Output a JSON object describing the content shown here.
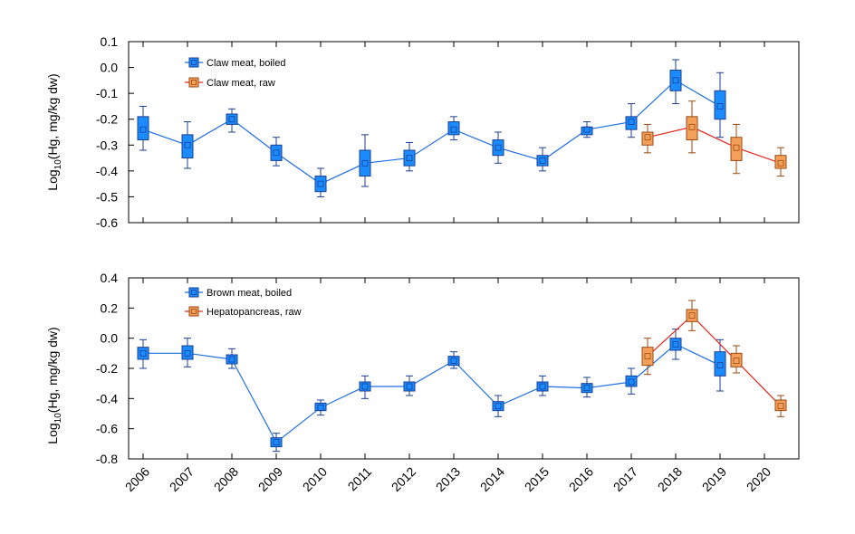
{
  "x_categories": [
    "2006",
    "2007",
    "2008",
    "2009",
    "2010",
    "2011",
    "2012",
    "2013",
    "2014",
    "2015",
    "2016",
    "2017",
    "2018",
    "2019",
    "2020"
  ],
  "chart_data": [
    {
      "type": "line",
      "panel": "top",
      "ylabel_prefix": "Log",
      "ylabel_sub": "10",
      "ylabel_suffix": "(Hg, mg/kg dw)",
      "ylim": [
        -0.6,
        0.1
      ],
      "yticks": [
        0.1,
        0.0,
        -0.1,
        -0.2,
        -0.3,
        -0.4,
        -0.5,
        -0.6
      ],
      "ytick_labels": [
        "0.1",
        "0.0",
        "-0.1",
        "-0.2",
        "-0.3",
        "-0.4",
        "-0.5",
        "-0.6"
      ],
      "series": [
        {
          "name": "Claw meat, boiled",
          "color": "#1f6fe0",
          "fill": "#1a8cff",
          "edge": "#1c3f94",
          "points": [
            {
              "x": "2006",
              "mean": -0.24,
              "q1": -0.28,
              "q3": -0.19,
              "min": -0.32,
              "max": -0.15
            },
            {
              "x": "2007",
              "mean": -0.3,
              "q1": -0.35,
              "q3": -0.26,
              "min": -0.39,
              "max": -0.21
            },
            {
              "x": "2008",
              "mean": -0.2,
              "q1": -0.22,
              "q3": -0.18,
              "min": -0.25,
              "max": -0.16
            },
            {
              "x": "2009",
              "mean": -0.33,
              "q1": -0.36,
              "q3": -0.3,
              "min": -0.38,
              "max": -0.27
            },
            {
              "x": "2010",
              "mean": -0.45,
              "q1": -0.48,
              "q3": -0.42,
              "min": -0.5,
              "max": -0.39
            },
            {
              "x": "2011",
              "mean": -0.37,
              "q1": -0.42,
              "q3": -0.32,
              "min": -0.46,
              "max": -0.26
            },
            {
              "x": "2012",
              "mean": -0.35,
              "q1": -0.38,
              "q3": -0.32,
              "min": -0.4,
              "max": -0.29
            },
            {
              "x": "2013",
              "mean": -0.24,
              "q1": -0.26,
              "q3": -0.21,
              "min": -0.28,
              "max": -0.19
            },
            {
              "x": "2014",
              "mean": -0.31,
              "q1": -0.34,
              "q3": -0.28,
              "min": -0.37,
              "max": -0.25
            },
            {
              "x": "2015",
              "mean": -0.36,
              "q1": -0.38,
              "q3": -0.34,
              "min": -0.4,
              "max": -0.31
            },
            {
              "x": "2016",
              "mean": -0.24,
              "q1": -0.26,
              "q3": -0.23,
              "min": -0.27,
              "max": -0.21
            },
            {
              "x": "2017",
              "mean": -0.21,
              "q1": -0.24,
              "q3": -0.19,
              "min": -0.27,
              "max": -0.14
            },
            {
              "x": "2018",
              "mean": -0.05,
              "q1": -0.09,
              "q3": -0.01,
              "min": -0.14,
              "max": 0.03
            },
            {
              "x": "2019",
              "mean": -0.15,
              "q1": -0.2,
              "q3": -0.09,
              "min": -0.27,
              "max": -0.02
            }
          ]
        },
        {
          "name": "Claw meat, raw",
          "color": "#e3271d",
          "fill": "#f5a05a",
          "edge": "#9a4a10",
          "points": [
            {
              "x": "2017",
              "mean": -0.27,
              "q1": -0.3,
              "q3": -0.25,
              "min": -0.33,
              "max": -0.22
            },
            {
              "x": "2018",
              "mean": -0.23,
              "q1": -0.28,
              "q3": -0.19,
              "min": -0.33,
              "max": -0.13
            },
            {
              "x": "2019",
              "mean": -0.31,
              "q1": -0.36,
              "q3": -0.27,
              "min": -0.41,
              "max": -0.22
            },
            {
              "x": "2020",
              "mean": -0.37,
              "q1": -0.39,
              "q3": -0.34,
              "min": -0.42,
              "max": -0.31
            }
          ]
        }
      ]
    },
    {
      "type": "line",
      "panel": "bottom",
      "ylabel_prefix": "Log",
      "ylabel_sub": "10",
      "ylabel_suffix": "(Hg, mg/kg dw)",
      "ylim": [
        -0.8,
        0.4
      ],
      "yticks": [
        0.4,
        0.2,
        0.0,
        -0.2,
        -0.4,
        -0.6,
        -0.8
      ],
      "ytick_labels": [
        "0.4",
        "0.2",
        "0.0",
        "-0.2",
        "-0.4",
        "-0.6",
        "-0.8"
      ],
      "series": [
        {
          "name": "Brown meat, boiled",
          "color": "#1f6fe0",
          "fill": "#1a8cff",
          "edge": "#1c3f94",
          "points": [
            {
              "x": "2006",
              "mean": -0.1,
              "q1": -0.14,
              "q3": -0.06,
              "min": -0.2,
              "max": -0.01
            },
            {
              "x": "2007",
              "mean": -0.1,
              "q1": -0.14,
              "q3": -0.05,
              "min": -0.19,
              "max": 0.0
            },
            {
              "x": "2008",
              "mean": -0.14,
              "q1": -0.17,
              "q3": -0.11,
              "min": -0.2,
              "max": -0.07
            },
            {
              "x": "2009",
              "mean": -0.69,
              "q1": -0.72,
              "q3": -0.66,
              "min": -0.75,
              "max": -0.63
            },
            {
              "x": "2010",
              "mean": -0.46,
              "q1": -0.48,
              "q3": -0.43,
              "min": -0.51,
              "max": -0.41
            },
            {
              "x": "2011",
              "mean": -0.32,
              "q1": -0.35,
              "q3": -0.29,
              "min": -0.4,
              "max": -0.25
            },
            {
              "x": "2012",
              "mean": -0.32,
              "q1": -0.35,
              "q3": -0.29,
              "min": -0.38,
              "max": -0.25
            },
            {
              "x": "2013",
              "mean": -0.15,
              "q1": -0.18,
              "q3": -0.12,
              "min": -0.2,
              "max": -0.09
            },
            {
              "x": "2014",
              "mean": -0.45,
              "q1": -0.48,
              "q3": -0.42,
              "min": -0.52,
              "max": -0.38
            },
            {
              "x": "2015",
              "mean": -0.32,
              "q1": -0.35,
              "q3": -0.29,
              "min": -0.38,
              "max": -0.25
            },
            {
              "x": "2016",
              "mean": -0.33,
              "q1": -0.36,
              "q3": -0.3,
              "min": -0.39,
              "max": -0.26
            },
            {
              "x": "2017",
              "mean": -0.29,
              "q1": -0.32,
              "q3": -0.25,
              "min": -0.37,
              "max": -0.2
            },
            {
              "x": "2018",
              "mean": -0.04,
              "q1": -0.08,
              "q3": 0.0,
              "min": -0.14,
              "max": 0.06
            },
            {
              "x": "2019",
              "mean": -0.18,
              "q1": -0.25,
              "q3": -0.09,
              "min": -0.35,
              "max": -0.01
            }
          ]
        },
        {
          "name": "Hepatopancreas, raw",
          "color": "#e3271d",
          "fill": "#f5a05a",
          "edge": "#9a4a10",
          "points": [
            {
              "x": "2017",
              "mean": -0.12,
              "q1": -0.18,
              "q3": -0.06,
              "min": -0.24,
              "max": 0.0
            },
            {
              "x": "2018",
              "mean": 0.15,
              "q1": 0.11,
              "q3": 0.19,
              "min": 0.05,
              "max": 0.25
            },
            {
              "x": "2019",
              "mean": -0.15,
              "q1": -0.19,
              "q3": -0.1,
              "min": -0.23,
              "max": -0.05
            },
            {
              "x": "2020",
              "mean": -0.45,
              "q1": -0.48,
              "q3": -0.41,
              "min": -0.52,
              "max": -0.38
            }
          ]
        }
      ]
    }
  ]
}
